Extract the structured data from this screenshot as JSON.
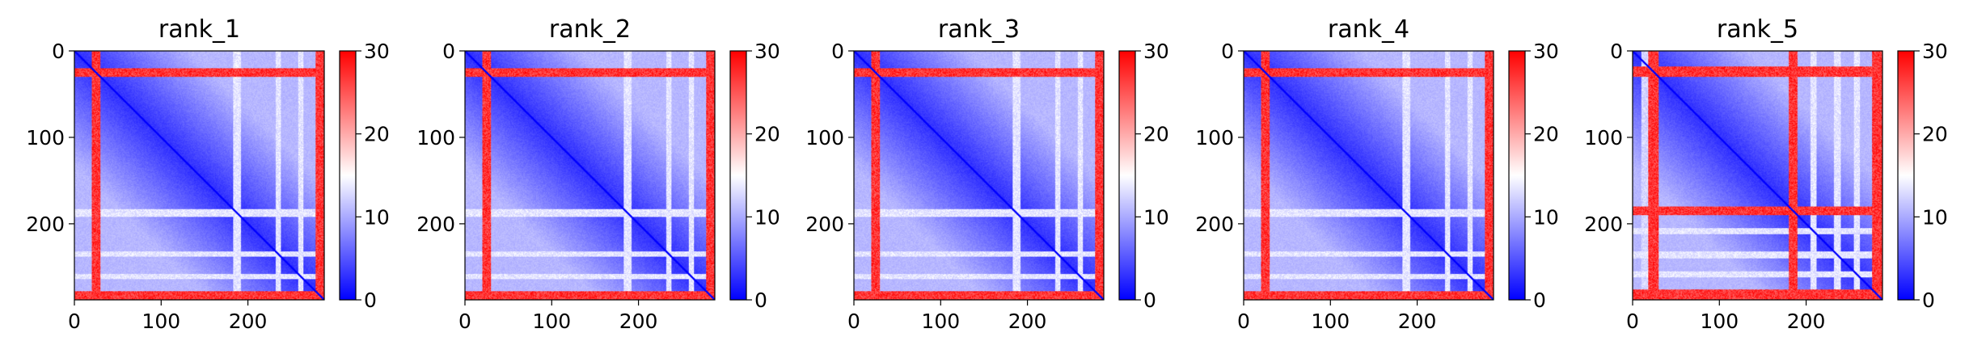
{
  "colormap": {
    "low": "#0000ff",
    "mid": "#ffffff",
    "high": "#ff0000"
  },
  "chart_data": [
    {
      "type": "heatmap",
      "title": "rank_1",
      "n": 288,
      "xticks": [
        0,
        100,
        200
      ],
      "yticks": [
        0,
        100,
        200
      ],
      "colorbar_ticks": [
        0,
        10,
        20,
        30
      ],
      "vmin": 0,
      "vmax": 30,
      "red_bands": [
        [
          20,
          30
        ],
        [
          278,
          288
        ]
      ],
      "white_bands": [
        [
          183,
          192
        ],
        [
          232,
          238
        ],
        [
          258,
          264
        ]
      ],
      "white_columns": [
        [
          22,
          28
        ]
      ]
    },
    {
      "type": "heatmap",
      "title": "rank_2",
      "n": 288,
      "xticks": [
        0,
        100,
        200
      ],
      "yticks": [
        0,
        100,
        200
      ],
      "colorbar_ticks": [
        0,
        10,
        20,
        30
      ],
      "vmin": 0,
      "vmax": 30,
      "red_bands": [
        [
          20,
          30
        ],
        [
          278,
          288
        ]
      ],
      "white_bands": [
        [
          183,
          192
        ],
        [
          232,
          238
        ],
        [
          258,
          264
        ]
      ],
      "white_columns": [
        [
          22,
          28
        ]
      ]
    },
    {
      "type": "heatmap",
      "title": "rank_3",
      "n": 288,
      "xticks": [
        0,
        100,
        200
      ],
      "yticks": [
        0,
        100,
        200
      ],
      "colorbar_ticks": [
        0,
        10,
        20,
        30
      ],
      "vmin": 0,
      "vmax": 30,
      "red_bands": [
        [
          20,
          30
        ],
        [
          278,
          288
        ]
      ],
      "white_bands": [
        [
          183,
          192
        ],
        [
          232,
          238
        ],
        [
          258,
          264
        ]
      ],
      "white_columns": []
    },
    {
      "type": "heatmap",
      "title": "rank_4",
      "n": 288,
      "xticks": [
        0,
        100,
        200
      ],
      "yticks": [
        0,
        100,
        200
      ],
      "colorbar_ticks": [
        0,
        10,
        20,
        30
      ],
      "vmin": 0,
      "vmax": 30,
      "red_bands": [
        [
          20,
          30
        ],
        [
          278,
          288
        ]
      ],
      "white_bands": [
        [
          183,
          192
        ],
        [
          232,
          238
        ],
        [
          258,
          264
        ]
      ],
      "white_columns": []
    },
    {
      "type": "heatmap",
      "title": "rank_5",
      "n": 288,
      "xticks": [
        0,
        100,
        200
      ],
      "yticks": [
        0,
        100,
        200
      ],
      "colorbar_ticks": [
        0,
        10,
        20,
        30
      ],
      "vmin": 0,
      "vmax": 30,
      "red_bands": [
        [
          18,
          30
        ],
        [
          180,
          190
        ],
        [
          276,
          288
        ]
      ],
      "white_bands": [
        [
          205,
          212
        ],
        [
          232,
          240
        ],
        [
          255,
          262
        ]
      ],
      "white_columns": [
        [
          10,
          20
        ]
      ]
    }
  ]
}
